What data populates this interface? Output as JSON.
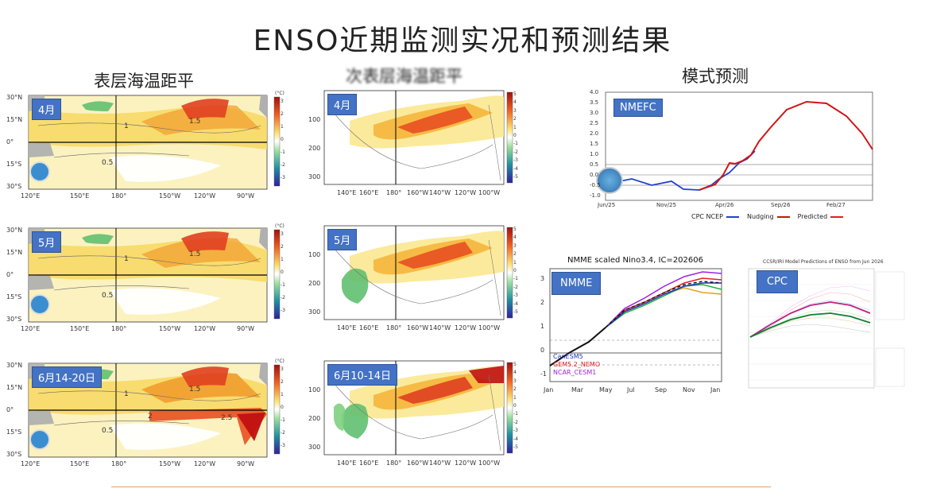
{
  "title": "ENSO近期监测实况和预测结果",
  "sst": {
    "heading": "表层海温距平",
    "panels": [
      "4月",
      "5月",
      "6月14-20日"
    ],
    "lat_labels": [
      "30°N",
      "15°N",
      "0°",
      "15°S",
      "30°S"
    ],
    "lon_labels": [
      "120°E",
      "150°E",
      "180°",
      "150°W",
      "120°W",
      "90°W"
    ],
    "contour_labels": [
      "1",
      "1.5",
      "0.5",
      "2",
      "2.5"
    ],
    "colorbar": {
      "unit": "(°C)",
      "ticks": [
        "3",
        "2",
        "1",
        "0",
        "-1",
        "-2",
        "-3"
      ]
    }
  },
  "subsurface": {
    "heading": "次表层海温距平",
    "panels": [
      "4月",
      "5月",
      "6月10-14日"
    ],
    "depth_labels": [
      "100",
      "200",
      "300"
    ],
    "lon_labels": [
      "140°E",
      "160°E",
      "180°",
      "160°W",
      "140°W",
      "120°W",
      "100°W"
    ],
    "colorbar_ticks": [
      "5",
      "4",
      "3",
      "2",
      "1",
      "0",
      "-1",
      "-2",
      "-3",
      "-4",
      "-5"
    ]
  },
  "model": {
    "heading": "模式预测",
    "nmefc": {
      "tag": "NMEFC",
      "y_ticks": [
        "4.0",
        "3.5",
        "3.0",
        "2.5",
        "2.0",
        "1.5",
        "1.0",
        "0.5",
        "0.0",
        "-0.5",
        "-1.0"
      ],
      "x_ticks": [
        "Jun/25",
        "Nov/25",
        "Apr/26",
        "Sep/26",
        "Feb/27"
      ],
      "legend": [
        {
          "label": "CPC NCEP",
          "color": "#2040d0"
        },
        {
          "label": "Nudging",
          "color": "#cc1111"
        },
        {
          "label": "Predicted",
          "color": "#e02020"
        }
      ]
    },
    "nmme": {
      "tag": "NMME",
      "title": "NMME scaled Nino3.4, IC=202606",
      "y_ticks": [
        "3",
        "2",
        "1",
        "0",
        "-1"
      ],
      "x_ticks": [
        "Jan",
        "Mar",
        "May",
        "Jul",
        "Sep",
        "Nov",
        "Jan"
      ],
      "models": [
        {
          "name": "CanESM5",
          "color": "#2030c0"
        },
        {
          "name": "GEM5.2_NEMO",
          "color": "#e02020"
        },
        {
          "name": "NCAR_CESM1",
          "color": "#a020e0"
        }
      ]
    },
    "cpc": {
      "tag": "CPC",
      "title": "CCSR/IRI Model Predictions of ENSO from Jun 2026"
    }
  }
}
